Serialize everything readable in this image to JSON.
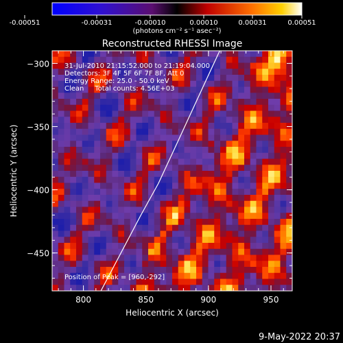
{
  "colorbar": {
    "ticks": [
      "-0.00051",
      "-0.00031",
      "-0.00010",
      "0.00010",
      "0.00031",
      "0.00051"
    ],
    "unit_label": "(photons cm⁻² s⁻¹ asec⁻²)"
  },
  "chart_data": {
    "type": "heatmap",
    "title": "Reconstructed RHESSI Image",
    "xlabel": "Heliocentric X (arcsec)",
    "ylabel": "Heliocentric Y (arcsec)",
    "xlim": [
      775,
      967
    ],
    "ylim": [
      -480,
      -290
    ],
    "x_ticks": [
      800,
      850,
      900,
      950
    ],
    "y_ticks": [
      -300,
      -350,
      -400,
      -450
    ],
    "color_range": [
      -0.00051,
      0.00051
    ],
    "colormap": [
      "#0000ff",
      "#4040c0",
      "#7a40a8",
      "#9a2a6a",
      "#ff0000",
      "#ffb000",
      "#ffffff"
    ],
    "annotations": [
      "31-Jul-2010 21:15:52.000 to 21:19:04.000",
      "Detectors: 3F 4F 5F 6F 7F 8F, Att 0",
      "Energy Range: 25.0 - 50.0 keV",
      "Clean     Total counts: 4.56E+03"
    ],
    "peak_label": "Position of Peak = [960,-292]",
    "limb_curve": [
      [
        814,
        -480
      ],
      [
        830,
        -450
      ],
      [
        846,
        -420
      ],
      [
        860,
        -395
      ],
      [
        874,
        -365
      ],
      [
        888,
        -335
      ],
      [
        902,
        -305
      ],
      [
        909,
        -290
      ]
    ]
  },
  "footer": {
    "timestamp": "9-May-2022 20:37"
  }
}
